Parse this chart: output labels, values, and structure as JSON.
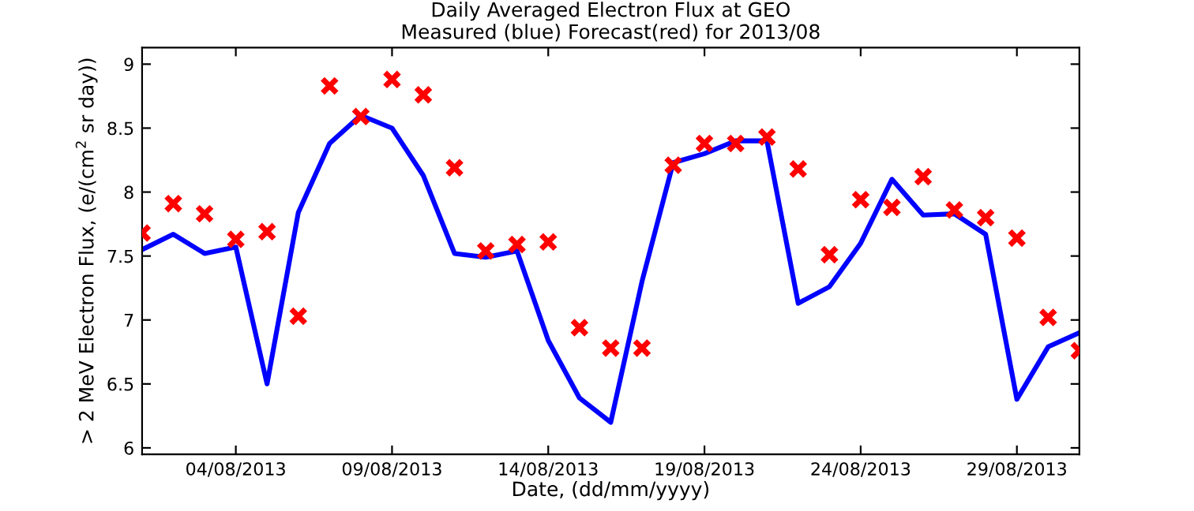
{
  "chart_data": {
    "type": "line",
    "title": "Daily Averaged Electron Flux at GEO",
    "subtitle": "Measured (blue) Forecast(red) for 2013/08",
    "xlabel": "Date, (dd/mm/yyyy)",
    "ylabel": "> 2 MeV Electron Flux, (e/(cm$^{2}$ sr day))",
    "x": [
      "2013-08-01",
      "2013-08-02",
      "2013-08-03",
      "2013-08-04",
      "2013-08-05",
      "2013-08-06",
      "2013-08-07",
      "2013-08-08",
      "2013-08-09",
      "2013-08-10",
      "2013-08-11",
      "2013-08-12",
      "2013-08-13",
      "2013-08-14",
      "2013-08-15",
      "2013-08-16",
      "2013-08-17",
      "2013-08-18",
      "2013-08-19",
      "2013-08-20",
      "2013-08-21",
      "2013-08-22",
      "2013-08-23",
      "2013-08-24",
      "2013-08-25",
      "2013-08-26",
      "2013-08-27",
      "2013-08-28",
      "2013-08-29",
      "2013-08-30",
      "2013-08-31"
    ],
    "series": [
      {
        "color": "#0000ff",
        "marker": "none",
        "line_style": "solid",
        "values": [
          7.55,
          7.67,
          7.52,
          7.57,
          6.5,
          7.84,
          8.38,
          8.6,
          8.5,
          8.13,
          7.52,
          7.49,
          7.54,
          6.84,
          6.39,
          6.2,
          7.3,
          8.23,
          8.3,
          8.4,
          8.4,
          7.13,
          7.26,
          7.6,
          8.1,
          7.82,
          7.83,
          7.67,
          6.38,
          6.79,
          6.9
        ]
      },
      {
        "type": "scatter",
        "color": "#ff0000",
        "marker": "cross",
        "values": [
          7.68,
          7.91,
          7.83,
          7.63,
          7.69,
          7.03,
          8.83,
          8.59,
          8.88,
          8.76,
          8.19,
          7.54,
          7.59,
          7.61,
          6.94,
          6.78,
          6.78,
          8.21,
          8.38,
          8.38,
          8.43,
          8.18,
          7.51,
          7.94,
          7.88,
          8.12,
          7.86,
          7.8,
          7.64,
          7.02,
          6.76
        ]
      }
    ],
    "xlim": [
      "2013-08-01",
      "2013-08-31"
    ],
    "xticks": [
      {
        "value": "2013-08-04",
        "label": "04/08/2013"
      },
      {
        "value": "2013-08-09",
        "label": "09/08/2013"
      },
      {
        "value": "2013-08-14",
        "label": "14/08/2013"
      },
      {
        "value": "2013-08-19",
        "label": "19/08/2013"
      },
      {
        "value": "2013-08-24",
        "label": "24/08/2013"
      },
      {
        "value": "2013-08-29",
        "label": "29/08/2013"
      }
    ],
    "ylim": [
      5.95,
      9.13
    ],
    "yticks": [
      6,
      6.5,
      7,
      7.5,
      8,
      8.5,
      9
    ],
    "grid": false
  }
}
